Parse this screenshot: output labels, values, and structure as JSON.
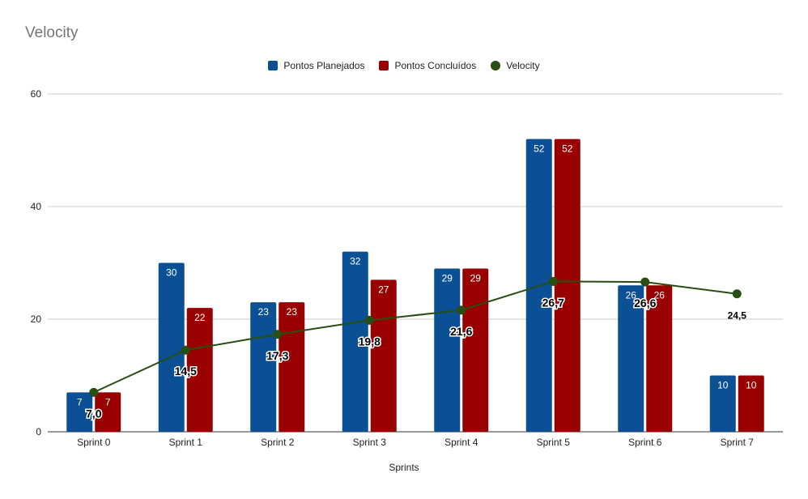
{
  "chart_data": {
    "type": "bar",
    "title": "Velocity",
    "xlabel": "Sprints",
    "ylabel": "",
    "ylim": [
      0,
      60
    ],
    "yticks": [
      0,
      20,
      40,
      60
    ],
    "categories": [
      "Sprint 0",
      "Sprint 1",
      "Sprint 2",
      "Sprint 3",
      "Sprint 4",
      "Sprint 5",
      "Sprint 6",
      "Sprint 7"
    ],
    "series": [
      {
        "name": "Pontos Planejados",
        "type": "bar",
        "color": "#0b4f94",
        "values": [
          7,
          30,
          23,
          32,
          29,
          52,
          26,
          10
        ],
        "labels": [
          "7",
          "30",
          "23",
          "32",
          "29",
          "52",
          "26",
          "10"
        ]
      },
      {
        "name": "Pontos Concluídos",
        "type": "bar",
        "color": "#990000",
        "values": [
          7,
          22,
          23,
          27,
          29,
          52,
          26,
          10
        ],
        "labels": [
          "7",
          "22",
          "23",
          "27",
          "29",
          "52",
          "26",
          "10"
        ]
      },
      {
        "name": "Velocity",
        "type": "line",
        "color": "#274e13",
        "values": [
          7.0,
          14.5,
          17.3,
          19.8,
          21.6,
          26.7,
          26.6,
          24.5
        ],
        "labels": [
          "7,0",
          "14,5",
          "17,3",
          "19,8",
          "21,6",
          "26,7",
          "26,6",
          "24,5"
        ]
      }
    ],
    "grid": true,
    "legend_position": "top"
  }
}
